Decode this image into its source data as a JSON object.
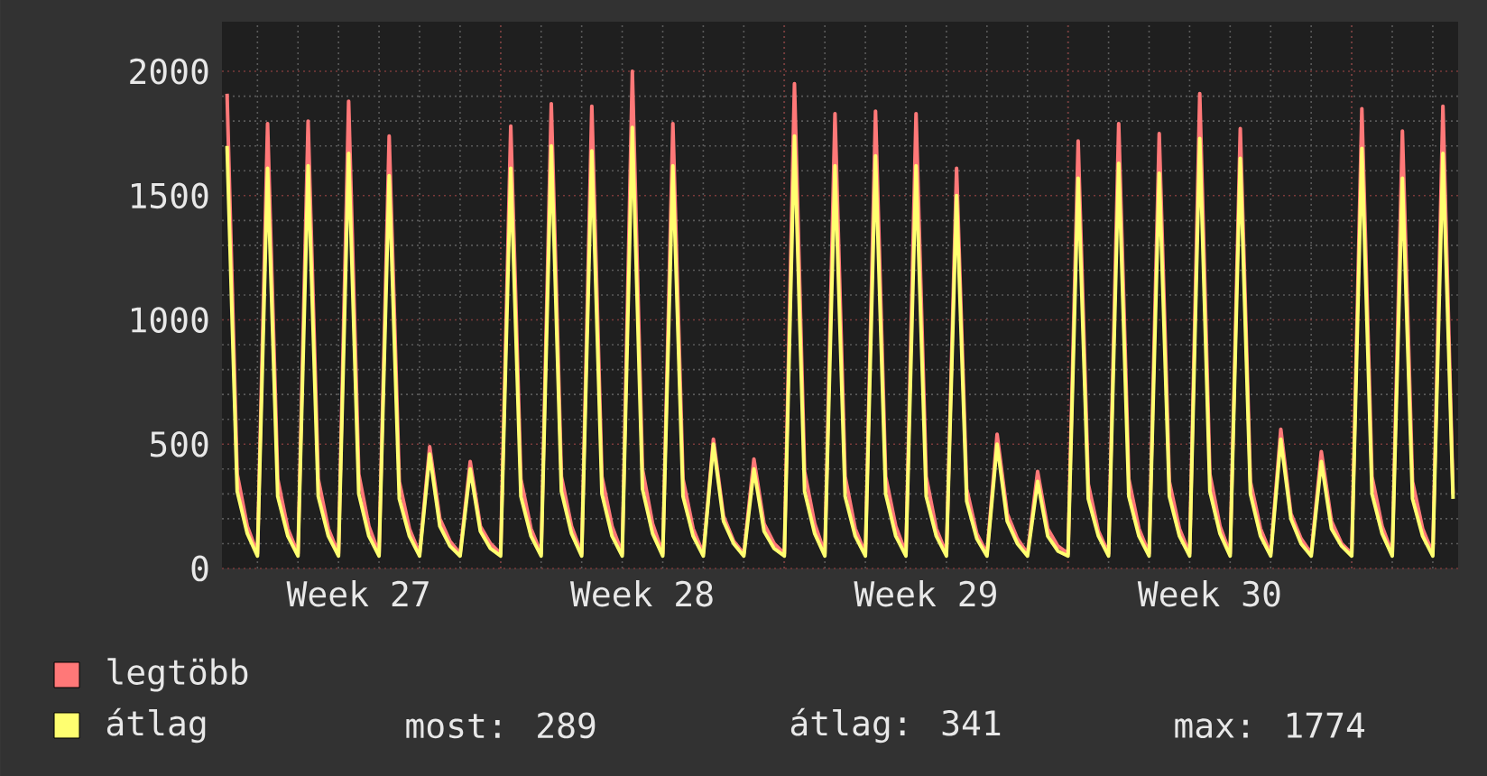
{
  "chart_data": {
    "type": "line",
    "categories": [
      null,
      null,
      null,
      null,
      null,
      null,
      null,
      null,
      null,
      null,
      null,
      null,
      null,
      "Week 27",
      null,
      null,
      null,
      null,
      null,
      null,
      null,
      null,
      null,
      null,
      null,
      null,
      null,
      null,
      null,
      null,
      null,
      null,
      null,
      null,
      null,
      null,
      null,
      null,
      null,
      null,
      null,
      "Week 28",
      null,
      null,
      null,
      null,
      null,
      null,
      null,
      null,
      null,
      null,
      null,
      null,
      null,
      null,
      null,
      null,
      null,
      null,
      null,
      null,
      null,
      null,
      null,
      null,
      null,
      null,
      null,
      "Week 29",
      null,
      null,
      null,
      null,
      null,
      null,
      null,
      null,
      null,
      null,
      null,
      null,
      null,
      null,
      null,
      null,
      null,
      null,
      null,
      null,
      null,
      null,
      null,
      null,
      null,
      null,
      null,
      "Week 30",
      null,
      null,
      null,
      null,
      null,
      null,
      null,
      null,
      null,
      null,
      null,
      null,
      null,
      null,
      null,
      null,
      null,
      null,
      null,
      null,
      null,
      null,
      null,
      null
    ],
    "series": [
      {
        "name": "legtöbb",
        "color": "#ff7878",
        "values": [
          1910,
          380,
          170,
          60,
          1790,
          360,
          160,
          60,
          1800,
          360,
          160,
          60,
          1880,
          380,
          170,
          60,
          1740,
          350,
          160,
          60,
          490,
          200,
          110,
          60,
          430,
          170,
          100,
          60,
          1780,
          360,
          160,
          60,
          1870,
          370,
          170,
          60,
          1860,
          370,
          170,
          60,
          2000,
          400,
          180,
          60,
          1790,
          360,
          160,
          60,
          520,
          210,
          110,
          60,
          440,
          180,
          100,
          60,
          1950,
          390,
          180,
          60,
          1830,
          370,
          160,
          60,
          1840,
          370,
          170,
          60,
          1830,
          370,
          160,
          60,
          1610,
          320,
          140,
          60,
          540,
          220,
          120,
          60,
          390,
          160,
          90,
          60,
          1720,
          340,
          150,
          60,
          1790,
          360,
          160,
          60,
          1750,
          350,
          160,
          60,
          1910,
          380,
          170,
          60,
          1770,
          350,
          160,
          60,
          560,
          220,
          120,
          60,
          470,
          190,
          100,
          60,
          1850,
          370,
          170,
          60,
          1760,
          350,
          160,
          60,
          1860,
          300
        ]
      },
      {
        "name": "átlag",
        "color": "#ffff70",
        "values": [
          1700,
          310,
          140,
          50,
          1610,
          290,
          130,
          50,
          1620,
          290,
          130,
          50,
          1670,
          300,
          130,
          50,
          1580,
          280,
          130,
          50,
          460,
          170,
          90,
          50,
          400,
          150,
          80,
          50,
          1610,
          290,
          130,
          50,
          1700,
          310,
          140,
          50,
          1680,
          300,
          130,
          50,
          1774,
          320,
          140,
          50,
          1620,
          290,
          130,
          50,
          500,
          190,
          100,
          50,
          400,
          150,
          80,
          50,
          1740,
          310,
          140,
          50,
          1620,
          290,
          130,
          50,
          1660,
          300,
          130,
          50,
          1620,
          290,
          130,
          50,
          1500,
          270,
          120,
          50,
          500,
          190,
          100,
          50,
          350,
          130,
          70,
          50,
          1570,
          280,
          130,
          50,
          1630,
          290,
          130,
          50,
          1590,
          290,
          130,
          50,
          1730,
          310,
          140,
          50,
          1650,
          300,
          130,
          50,
          520,
          200,
          100,
          50,
          430,
          160,
          90,
          50,
          1690,
          300,
          140,
          50,
          1570,
          280,
          130,
          50,
          1670,
          280
        ]
      }
    ],
    "ylim": [
      0,
      2200
    ],
    "yticks": [
      0,
      500,
      1000,
      1500,
      2000
    ],
    "grid": true,
    "legend": "bottom",
    "annotations": [
      "most: 289",
      "átlag: 341",
      "max: 1774"
    ]
  }
}
